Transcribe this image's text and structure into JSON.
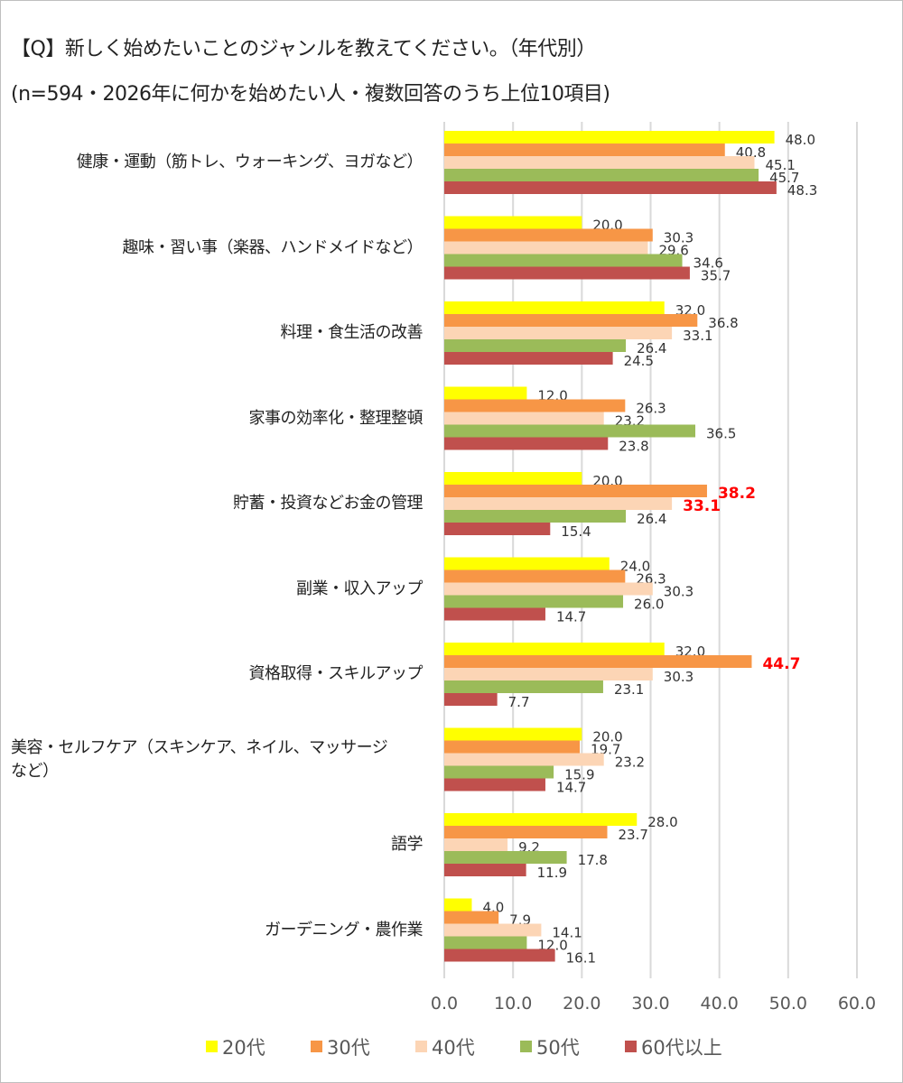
{
  "title_line1": "【Q】新しく始めたいことのジャンルを教えてください。（年代別）",
  "title_line2": "(n=594・2026年に何かを始めたい人・複数回答のうち上位10項目)",
  "chart_data": {
    "type": "bar",
    "orientation": "horizontal",
    "categories": [
      [
        "健康・運動（筋トレ、ウォーキング、ヨガなど）"
      ],
      [
        "趣味・習い事（楽器、ハンドメイドなど）"
      ],
      [
        "料理・食生活の改善"
      ],
      [
        "家事の効率化・整理整頓"
      ],
      [
        "貯蓄・投資などお金の管理"
      ],
      [
        "副業・収入アップ"
      ],
      [
        "資格取得・スキルアップ"
      ],
      [
        "美容・セルフケア（スキンケア、ネイル、マッサージ",
        "など）"
      ],
      [
        "語学"
      ],
      [
        "ガーデニング・農作業"
      ]
    ],
    "series": [
      {
        "name": "20代",
        "color": "#ffff00",
        "values": [
          48.0,
          20.0,
          32.0,
          12.0,
          20.0,
          24.0,
          32.0,
          20.0,
          28.0,
          4.0
        ]
      },
      {
        "name": "30代",
        "color": "#f79646",
        "values": [
          40.8,
          30.3,
          36.8,
          26.3,
          38.2,
          26.3,
          44.7,
          19.7,
          23.7,
          7.9
        ]
      },
      {
        "name": "40代",
        "color": "#fcd5b5",
        "values": [
          45.1,
          29.6,
          33.1,
          23.2,
          33.1,
          30.3,
          30.3,
          23.2,
          9.2,
          14.1
        ]
      },
      {
        "name": "50代",
        "color": "#9bbb59",
        "values": [
          45.7,
          34.6,
          26.4,
          36.5,
          26.4,
          26.0,
          23.1,
          15.9,
          17.8,
          12.0
        ]
      },
      {
        "name": "60代以上",
        "color": "#c0504d",
        "values": [
          48.3,
          35.7,
          24.5,
          23.8,
          15.4,
          14.7,
          7.7,
          14.7,
          11.9,
          16.1
        ]
      }
    ],
    "highlighted_labels": [
      {
        "series": "30代",
        "category_index": 4,
        "color": "#ff0000"
      },
      {
        "series": "40代",
        "category_index": 4,
        "color": "#ff0000"
      },
      {
        "series": "30代",
        "category_index": 6,
        "color": "#ff0000"
      }
    ],
    "xlim": [
      0,
      60
    ],
    "xticks": [
      "0.0",
      "10.0",
      "20.0",
      "30.0",
      "40.0",
      "50.0",
      "60.0"
    ],
    "grid": true,
    "legend_position": "bottom"
  }
}
